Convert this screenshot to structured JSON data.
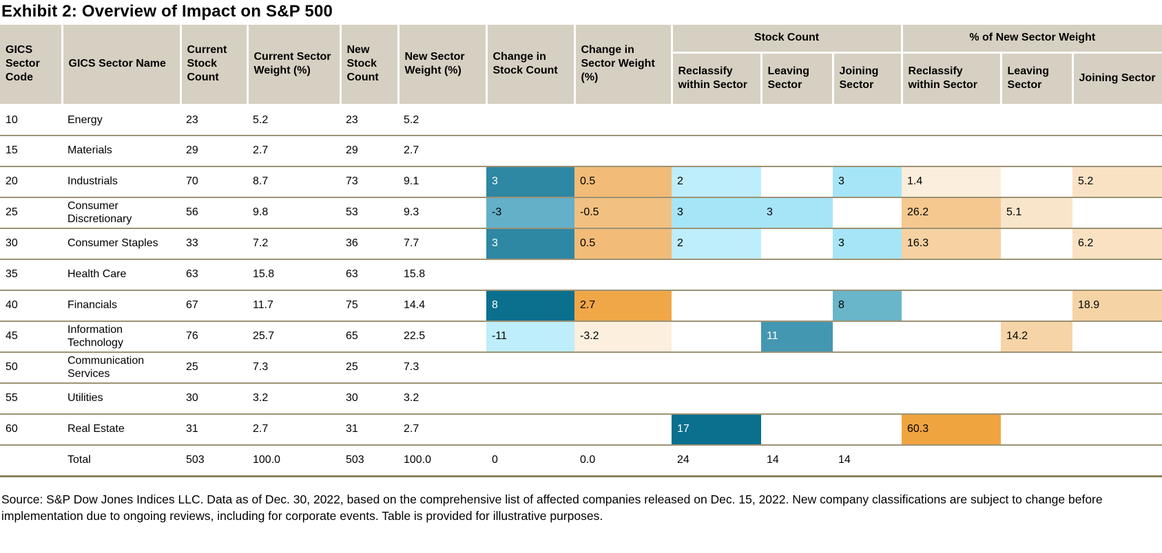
{
  "title": "Exhibit 2: Overview of Impact on S&P 500",
  "source_note": "Source: S&P Dow Jones Indices LLC. Data as of Dec. 30, 2022, based on the comprehensive list of affected companies released on Dec. 15, 2022. New company classifications are subject to change before implementation due to ongoing reviews, including for corporate events. Table is provided for illustrative purposes.",
  "colors": {
    "header_bg": "#D6D0C2",
    "row_border": "#9C9274",
    "teal_dark": "#0B6F8E",
    "teal_mid": "#2E87A3",
    "teal_11": "#4497B0",
    "teal_neg3": "#63B0C9",
    "teal_join8": "#69B6C9",
    "cyan_3": "#A6E5F8",
    "cyan_2": "#BEEDFB",
    "orange_60": "#F0A43F",
    "orange_27": "#F0A747",
    "orange_05": "#F2BB77",
    "orange_neg05": "#F2C080",
    "orange_262": "#F5C88F",
    "orange_163": "#F6D2A2",
    "orange_189": "#F6D3A5",
    "orange_142": "#F6D4A7",
    "cream_52": "#F9E2C4",
    "cream_62": "#F9E1C2",
    "cream_51": "#F9E5C9",
    "cream_14": "#FBEEDC",
    "cream_neg32": "#FCEFDD"
  },
  "table": {
    "headers": {
      "code": "GICS Sector Code",
      "name": "GICS Sector Name",
      "cur_count": "Current Stock Count",
      "cur_weight": "Current Sector Weight (%)",
      "new_count": "New Stock Count",
      "new_weight": "New Sector Weight (%)",
      "chg_count": "Change in Stock Count",
      "chg_weight": "Change in Sector Weight (%)",
      "group_stock_count": "Stock Count",
      "group_pct_new_weight": "% of New Sector Weight",
      "reclassify": "Reclassify within Sector",
      "leaving": "Leaving Sector",
      "joining": "Joining Sector"
    },
    "rows": [
      {
        "cells": [
          {
            "v": "10"
          },
          {
            "v": "Energy"
          },
          {
            "v": "23"
          },
          {
            "v": "5.2"
          },
          {
            "v": "23"
          },
          {
            "v": "5.2"
          },
          {
            "v": ""
          },
          {
            "v": ""
          },
          {
            "v": ""
          },
          {
            "v": ""
          },
          {
            "v": ""
          },
          {
            "v": ""
          },
          {
            "v": ""
          },
          {
            "v": ""
          }
        ]
      },
      {
        "cells": [
          {
            "v": "15"
          },
          {
            "v": "Materials"
          },
          {
            "v": "29"
          },
          {
            "v": "2.7"
          },
          {
            "v": "29"
          },
          {
            "v": "2.7"
          },
          {
            "v": ""
          },
          {
            "v": ""
          },
          {
            "v": ""
          },
          {
            "v": ""
          },
          {
            "v": ""
          },
          {
            "v": ""
          },
          {
            "v": ""
          },
          {
            "v": ""
          }
        ]
      },
      {
        "cells": [
          {
            "v": "20"
          },
          {
            "v": "Industrials"
          },
          {
            "v": "70"
          },
          {
            "v": "8.7"
          },
          {
            "v": "73"
          },
          {
            "v": "9.1"
          },
          {
            "v": "3",
            "bg": "#2E87A3",
            "fg": "#FFFFFF"
          },
          {
            "v": "0.5",
            "bg": "#F2BB77"
          },
          {
            "v": "2",
            "bg": "#BEEDFB"
          },
          {
            "v": ""
          },
          {
            "v": "3",
            "bg": "#A6E5F8"
          },
          {
            "v": "1.4",
            "bg": "#FBEEDC"
          },
          {
            "v": ""
          },
          {
            "v": "5.2",
            "bg": "#F9E2C4"
          }
        ]
      },
      {
        "cells": [
          {
            "v": "25"
          },
          {
            "v": "Consumer Discretionary"
          },
          {
            "v": "56"
          },
          {
            "v": "9.8"
          },
          {
            "v": "53"
          },
          {
            "v": "9.3"
          },
          {
            "v": "-3",
            "bg": "#63B0C9"
          },
          {
            "v": "-0.5",
            "bg": "#F2C080"
          },
          {
            "v": "3",
            "bg": "#A6E5F8"
          },
          {
            "v": "3",
            "bg": "#A6E5F8"
          },
          {
            "v": ""
          },
          {
            "v": "26.2",
            "bg": "#F5C88F"
          },
          {
            "v": "5.1",
            "bg": "#F9E5C9"
          },
          {
            "v": ""
          }
        ]
      },
      {
        "cells": [
          {
            "v": "30"
          },
          {
            "v": "Consumer Staples"
          },
          {
            "v": "33"
          },
          {
            "v": "7.2"
          },
          {
            "v": "36"
          },
          {
            "v": "7.7"
          },
          {
            "v": "3",
            "bg": "#2E87A3",
            "fg": "#FFFFFF"
          },
          {
            "v": "0.5",
            "bg": "#F2BB77"
          },
          {
            "v": "2",
            "bg": "#BEEDFB"
          },
          {
            "v": ""
          },
          {
            "v": "3",
            "bg": "#A6E5F8"
          },
          {
            "v": "16.3",
            "bg": "#F6D2A2"
          },
          {
            "v": ""
          },
          {
            "v": "6.2",
            "bg": "#F9E1C2"
          }
        ]
      },
      {
        "cells": [
          {
            "v": "35"
          },
          {
            "v": "Health Care"
          },
          {
            "v": "63"
          },
          {
            "v": "15.8"
          },
          {
            "v": "63"
          },
          {
            "v": "15.8"
          },
          {
            "v": ""
          },
          {
            "v": ""
          },
          {
            "v": ""
          },
          {
            "v": ""
          },
          {
            "v": ""
          },
          {
            "v": ""
          },
          {
            "v": ""
          },
          {
            "v": ""
          }
        ]
      },
      {
        "cells": [
          {
            "v": "40"
          },
          {
            "v": "Financials"
          },
          {
            "v": "67"
          },
          {
            "v": "11.7"
          },
          {
            "v": "75"
          },
          {
            "v": "14.4"
          },
          {
            "v": "8",
            "bg": "#0B6F8E",
            "fg": "#FFFFFF"
          },
          {
            "v": "2.7",
            "bg": "#F0A747"
          },
          {
            "v": ""
          },
          {
            "v": ""
          },
          {
            "v": "8",
            "bg": "#69B6C9"
          },
          {
            "v": ""
          },
          {
            "v": ""
          },
          {
            "v": "18.9",
            "bg": "#F6D3A5"
          }
        ]
      },
      {
        "cells": [
          {
            "v": "45"
          },
          {
            "v": "Information Technology"
          },
          {
            "v": "76"
          },
          {
            "v": "25.7"
          },
          {
            "v": "65"
          },
          {
            "v": "22.5"
          },
          {
            "v": "-11",
            "bg": "#BEEDFB"
          },
          {
            "v": "-3.2",
            "bg": "#FCEFDD"
          },
          {
            "v": ""
          },
          {
            "v": "11",
            "bg": "#4497B0",
            "fg": "#FFFFFF"
          },
          {
            "v": ""
          },
          {
            "v": ""
          },
          {
            "v": "14.2",
            "bg": "#F6D4A7"
          },
          {
            "v": ""
          }
        ]
      },
      {
        "cells": [
          {
            "v": "50"
          },
          {
            "v": "Communication Services"
          },
          {
            "v": "25"
          },
          {
            "v": "7.3"
          },
          {
            "v": "25"
          },
          {
            "v": "7.3"
          },
          {
            "v": ""
          },
          {
            "v": ""
          },
          {
            "v": ""
          },
          {
            "v": ""
          },
          {
            "v": ""
          },
          {
            "v": ""
          },
          {
            "v": ""
          },
          {
            "v": ""
          }
        ]
      },
      {
        "cells": [
          {
            "v": "55"
          },
          {
            "v": "Utilities"
          },
          {
            "v": "30"
          },
          {
            "v": "3.2"
          },
          {
            "v": "30"
          },
          {
            "v": "3.2"
          },
          {
            "v": ""
          },
          {
            "v": ""
          },
          {
            "v": ""
          },
          {
            "v": ""
          },
          {
            "v": ""
          },
          {
            "v": ""
          },
          {
            "v": ""
          },
          {
            "v": ""
          }
        ]
      },
      {
        "cells": [
          {
            "v": "60"
          },
          {
            "v": "Real Estate"
          },
          {
            "v": "31"
          },
          {
            "v": "2.7"
          },
          {
            "v": "31"
          },
          {
            "v": "2.7"
          },
          {
            "v": ""
          },
          {
            "v": ""
          },
          {
            "v": "17",
            "bg": "#0B6F8E",
            "fg": "#FFFFFF"
          },
          {
            "v": ""
          },
          {
            "v": ""
          },
          {
            "v": "60.3",
            "bg": "#F0A43F"
          },
          {
            "v": ""
          },
          {
            "v": ""
          }
        ]
      },
      {
        "cells": [
          {
            "v": ""
          },
          {
            "v": "Total"
          },
          {
            "v": "503"
          },
          {
            "v": "100.0"
          },
          {
            "v": "503"
          },
          {
            "v": "100.0"
          },
          {
            "v": "0"
          },
          {
            "v": "0.0"
          },
          {
            "v": "24"
          },
          {
            "v": "14"
          },
          {
            "v": "14"
          },
          {
            "v": ""
          },
          {
            "v": ""
          },
          {
            "v": ""
          }
        ]
      }
    ]
  }
}
